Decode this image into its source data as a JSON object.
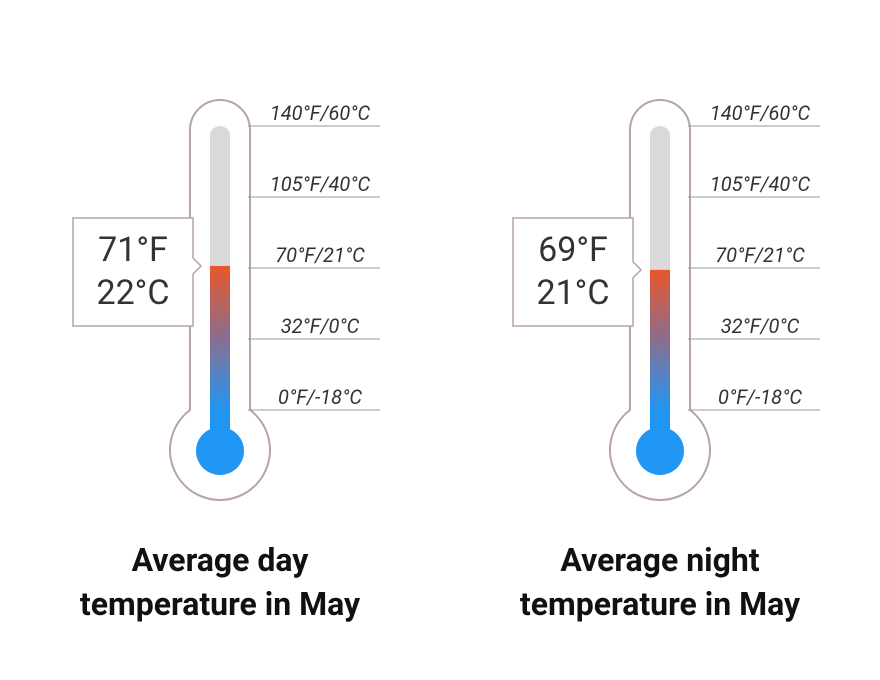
{
  "chart_data": [
    {
      "type": "thermometer",
      "title": "Average day temperature in May",
      "reading": {
        "value": 71,
        "label": "71°F"
      },
      "reading_c": "22°C",
      "yticks": [
        {
          "value": 140,
          "label": "140°F/60°C"
        },
        {
          "value": 105,
          "label": "105°F/40°C"
        },
        {
          "value": 70,
          "label": "70°F/21°C"
        },
        {
          "value": 32,
          "label": "32°F/0°C"
        },
        {
          "value": 0,
          "label": "0°F/-18°C"
        }
      ]
    },
    {
      "type": "thermometer",
      "title": "Average night temperature in May",
      "reading": {
        "value": 69,
        "label": "69°F"
      },
      "reading_c": "21°C",
      "yticks": [
        {
          "value": 140,
          "label": "140°F/60°C"
        },
        {
          "value": 105,
          "label": "105°F/40°C"
        },
        {
          "value": 70,
          "label": "70°F/21°C"
        },
        {
          "value": 32,
          "label": "32°F/0°C"
        },
        {
          "value": 0,
          "label": "0°F/-18°C"
        }
      ]
    }
  ]
}
